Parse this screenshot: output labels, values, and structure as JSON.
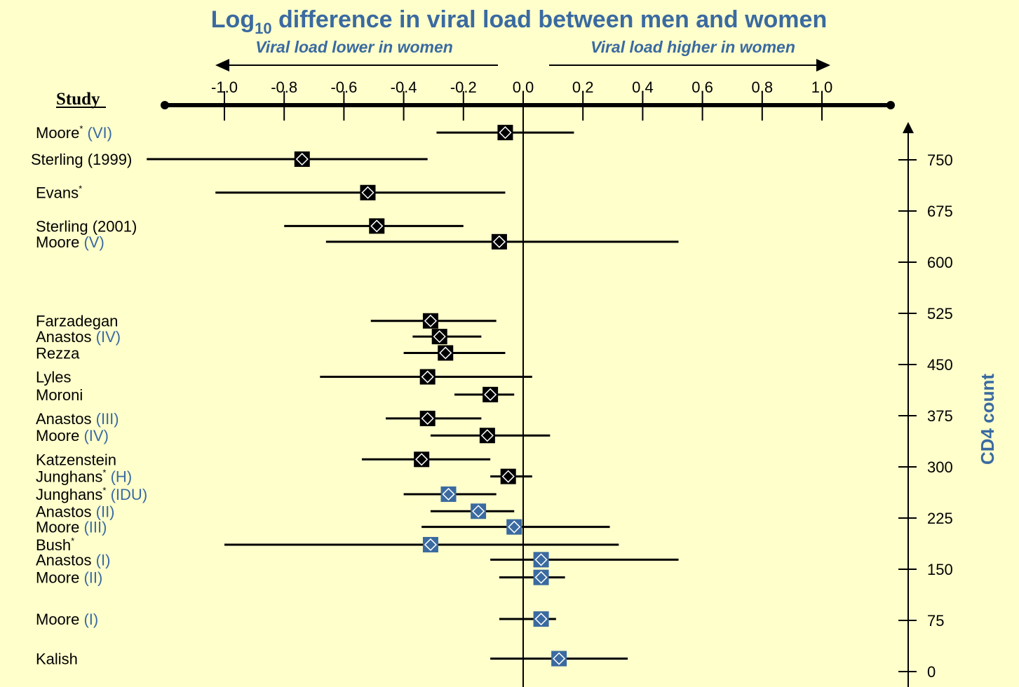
{
  "colors": {
    "background": "#FFFFCC",
    "title": "#3A6AA0",
    "qualifier": "#3A6AA0",
    "marker_black": "#000000",
    "marker_blue": "#3A6AA0"
  },
  "chart_data": {
    "type": "forest",
    "title_main": "Log",
    "title_sub": "10",
    "title_rest": " difference in viral load between men and women",
    "arrow_left_label": "Viral load lower in women",
    "arrow_right_label": "Viral load higher in women",
    "x_ticks": [
      "-1.0",
      "-0.8",
      "-0.6",
      "-0.4",
      "-0.2",
      "0.0",
      "0.2",
      "0.4",
      "0.6",
      "0.8",
      "1.0"
    ],
    "x_tick_values": [
      -1.0,
      -0.8,
      -0.6,
      -0.4,
      -0.2,
      0.0,
      0.2,
      0.4,
      0.6,
      0.8,
      1.0
    ],
    "xlim": [
      -1.2,
      1.25
    ],
    "study_header": "Study",
    "ylabel_right": "CD4 count",
    "y_ticks": [
      "750",
      "675",
      "600",
      "525",
      "450",
      "375",
      "300",
      "225",
      "150",
      "75",
      "0"
    ],
    "y_tick_values": [
      750,
      675,
      600,
      525,
      450,
      375,
      300,
      225,
      150,
      75,
      0
    ],
    "ylim": [
      0,
      800
    ],
    "studies": [
      {
        "name": "Moore",
        "sup": "*",
        "qualifier": "(VI)",
        "est": -0.06,
        "lo": -0.29,
        "hi": 0.17,
        "cd4": 790,
        "marker": "black"
      },
      {
        "name": "Sterling (1999)",
        "sup": "",
        "qualifier": "",
        "est": -0.74,
        "lo": -1.26,
        "hi": -0.32,
        "cd4": 751,
        "marker": "black"
      },
      {
        "name": "Evans",
        "sup": "*",
        "qualifier": "",
        "est": -0.52,
        "lo": -1.03,
        "hi": -0.06,
        "cd4": 702,
        "marker": "black"
      },
      {
        "name": "Sterling (2001)",
        "sup": "",
        "qualifier": "",
        "est": -0.49,
        "lo": -0.8,
        "hi": -0.2,
        "cd4": 653,
        "marker": "black"
      },
      {
        "name": "Moore",
        "sup": "",
        "qualifier": "(V)",
        "est": -0.08,
        "lo": -0.66,
        "hi": 0.52,
        "cd4": 630,
        "marker": "black"
      },
      {
        "name": "Farzadegan",
        "sup": "",
        "qualifier": "",
        "est": -0.31,
        "lo": -0.51,
        "hi": -0.09,
        "cd4": 514,
        "marker": "black"
      },
      {
        "name": "Anastos",
        "sup": "",
        "qualifier": "(IV)",
        "est": -0.28,
        "lo": -0.37,
        "hi": -0.14,
        "cd4": 491,
        "marker": "black"
      },
      {
        "name": "Rezza",
        "sup": "",
        "qualifier": "",
        "est": -0.26,
        "lo": -0.4,
        "hi": -0.06,
        "cd4": 467,
        "marker": "black"
      },
      {
        "name": "Lyles",
        "sup": "",
        "qualifier": "",
        "est": -0.32,
        "lo": -0.68,
        "hi": 0.03,
        "cd4": 432,
        "marker": "black"
      },
      {
        "name": "Moroni",
        "sup": "",
        "qualifier": "",
        "est": -0.11,
        "lo": -0.23,
        "hi": -0.03,
        "cd4": 406,
        "marker": "black"
      },
      {
        "name": "Anastos",
        "sup": "",
        "qualifier": "(III)",
        "est": -0.32,
        "lo": -0.46,
        "hi": -0.14,
        "cd4": 371,
        "marker": "black"
      },
      {
        "name": "Moore",
        "sup": "",
        "qualifier": "(IV)",
        "est": -0.12,
        "lo": -0.31,
        "hi": 0.09,
        "cd4": 346,
        "marker": "black"
      },
      {
        "name": "Katzenstein",
        "sup": "",
        "qualifier": "",
        "est": -0.34,
        "lo": -0.54,
        "hi": -0.11,
        "cd4": 311,
        "marker": "black"
      },
      {
        "name": "Junghans",
        "sup": "*",
        "qualifier": "(H)",
        "est": -0.05,
        "lo": -0.11,
        "hi": 0.03,
        "cd4": 286,
        "marker": "black"
      },
      {
        "name": "Junghans",
        "sup": "*",
        "qualifier": "(IDU)",
        "est": -0.25,
        "lo": -0.4,
        "hi": -0.09,
        "cd4": 260,
        "marker": "blue"
      },
      {
        "name": "Anastos",
        "sup": "",
        "qualifier": "(II)",
        "est": -0.15,
        "lo": -0.31,
        "hi": -0.03,
        "cd4": 235,
        "marker": "blue"
      },
      {
        "name": "Moore",
        "sup": "",
        "qualifier": "(III)",
        "est": -0.03,
        "lo": -0.34,
        "hi": 0.29,
        "cd4": 212,
        "marker": "blue"
      },
      {
        "name": "Bush",
        "sup": "*",
        "qualifier": "",
        "est": -0.31,
        "lo": -1.0,
        "hi": 0.32,
        "cd4": 186,
        "marker": "blue"
      },
      {
        "name": "Anastos",
        "sup": "",
        "qualifier": "(I)",
        "est": 0.06,
        "lo": -0.11,
        "hi": 0.52,
        "cd4": 164,
        "marker": "blue"
      },
      {
        "name": "Moore",
        "sup": "",
        "qualifier": "(II)",
        "est": 0.06,
        "lo": -0.08,
        "hi": 0.14,
        "cd4": 138,
        "marker": "blue"
      },
      {
        "name": "Moore",
        "sup": "",
        "qualifier": "(I)",
        "est": 0.06,
        "lo": -0.08,
        "hi": 0.11,
        "cd4": 77,
        "marker": "blue"
      },
      {
        "name": "Kalish",
        "sup": "",
        "qualifier": "",
        "est": 0.12,
        "lo": -0.11,
        "hi": 0.35,
        "cd4": 19,
        "marker": "blue"
      }
    ]
  }
}
